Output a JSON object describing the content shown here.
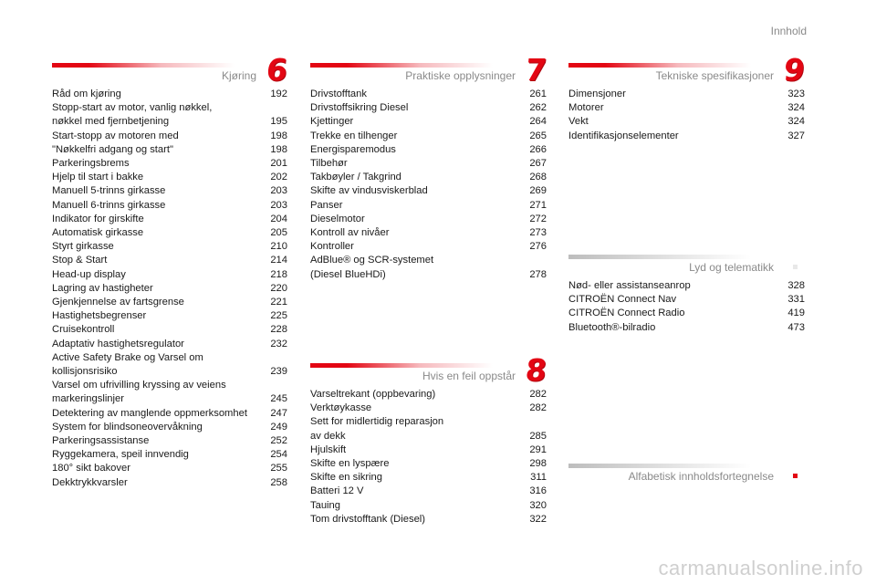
{
  "header": {
    "top_link": "Innhold"
  },
  "sections": [
    {
      "id": "kjoring",
      "title": "Kjøring",
      "number": "6",
      "entries": [
        {
          "label": "Råd om kjøring",
          "page": "192"
        },
        {
          "label": "Stopp-start av motor, vanlig nøkkel,\n   nøkkel med fjernbetjening",
          "page": "195"
        },
        {
          "label": "Start-stopp av motoren med",
          "page": "198"
        },
        {
          "label": "\"Nøkkelfri adgang og start\"",
          "page": "198"
        },
        {
          "label": "Parkeringsbrems",
          "page": "201"
        },
        {
          "label": "Hjelp til start i bakke",
          "page": "202"
        },
        {
          "label": "Manuell 5-trinns girkasse",
          "page": "203"
        },
        {
          "label": "Manuell 6-trinns girkasse",
          "page": "203"
        },
        {
          "label": "Indikator for girskifte",
          "page": "204"
        },
        {
          "label": "Automatisk girkasse",
          "page": "205"
        },
        {
          "label": "Styrt girkasse",
          "page": "210"
        },
        {
          "label": "Stop & Start",
          "page": "214"
        },
        {
          "label": "Head-up display",
          "page": "218"
        },
        {
          "label": "Lagring av hastigheter",
          "page": "220"
        },
        {
          "label": "Gjenkjennelse av fartsgrense",
          "page": "221"
        },
        {
          "label": "Hastighetsbegrenser",
          "page": "225"
        },
        {
          "label": "Cruisekontroll",
          "page": "228"
        },
        {
          "label": "Adaptativ hastighetsregulator",
          "page": "232"
        },
        {
          "label": "Active Safety Brake og Varsel om\n   kollisjonsrisiko",
          "page": "239"
        },
        {
          "label": "Varsel om ufrivilling kryssing av veiens\n   markeringslinjer",
          "page": "245"
        },
        {
          "label": "Detektering av manglende oppmerksomhet",
          "page": "247"
        },
        {
          "label": "System for blindsoneovervåkning",
          "page": "249"
        },
        {
          "label": "Parkeringsassistanse",
          "page": "252"
        },
        {
          "label": "Ryggekamera, speil innvendig",
          "page": "254"
        },
        {
          "label": "180° sikt bakover",
          "page": "255"
        },
        {
          "label": "Dekktrykkvarsler",
          "page": "258"
        }
      ]
    },
    {
      "id": "praktiske",
      "title": "Praktiske opplysninger",
      "number": "7",
      "entries": [
        {
          "label": "Drivstofftank",
          "page": "261"
        },
        {
          "label": "Drivstoffsikring Diesel",
          "page": "262"
        },
        {
          "label": "Kjettinger",
          "page": "264"
        },
        {
          "label": "Trekke en tilhenger",
          "page": "265"
        },
        {
          "label": "Energisparemodus",
          "page": "266"
        },
        {
          "label": "Tilbehør",
          "page": "267"
        },
        {
          "label": "Takbøyler / Takgrind",
          "page": "268"
        },
        {
          "label": "Skifte av vindusviskerblad",
          "page": "269"
        },
        {
          "label": "Panser",
          "page": "271"
        },
        {
          "label": "Dieselmotor",
          "page": "272"
        },
        {
          "label": "Kontroll av nivåer",
          "page": "273"
        },
        {
          "label": "Kontroller",
          "page": "276"
        },
        {
          "label": "AdBlue® og SCR-systemet\n   (Diesel BlueHDi)",
          "page": "278"
        }
      ]
    },
    {
      "id": "hvis-feil",
      "title": "Hvis en feil oppstår",
      "number": "8",
      "entries": [
        {
          "label": "Varseltrekant (oppbevaring)",
          "page": "282"
        },
        {
          "label": "Verktøykasse",
          "page": "282"
        },
        {
          "label": "Sett for midlertidig reparasjon\n   av dekk",
          "page": "285"
        },
        {
          "label": "Hjulskift",
          "page": "291"
        },
        {
          "label": "Skifte en lyspære",
          "page": "298"
        },
        {
          "label": "Skifte en sikring",
          "page": "311"
        },
        {
          "label": "Batteri 12 V",
          "page": "316"
        },
        {
          "label": "Tauing",
          "page": "320"
        },
        {
          "label": "Tom drivstofftank (Diesel)",
          "page": "322"
        }
      ]
    },
    {
      "id": "tekniske",
      "title": "Tekniske spesifikasjoner",
      "number": "9",
      "entries": [
        {
          "label": "Dimensjoner",
          "page": "323"
        },
        {
          "label": "Motorer",
          "page": "324"
        },
        {
          "label": "Vekt",
          "page": "324"
        },
        {
          "label": "Identifikasjonselementer",
          "page": "327"
        }
      ]
    },
    {
      "id": "lyd",
      "title": "Lyd og telematikk",
      "number": "",
      "entries": [
        {
          "label": "Nød- eller assistanseanrop",
          "page": "328"
        },
        {
          "label": "CITROËN Connect Nav",
          "page": "331"
        },
        {
          "label": "CITROËN Connect Radio",
          "page": "419"
        },
        {
          "label": "Bluetooth®-bilradio",
          "page": "473"
        }
      ]
    },
    {
      "id": "alfabetisk",
      "title": "Alfabetisk innholdsfortegnelse",
      "number": "",
      "entries": []
    }
  ],
  "watermark": "carmanualsonline.info",
  "colors": {
    "accent": "#e30613",
    "muted": "#8a8a8a",
    "text": "#1a1a1a"
  }
}
